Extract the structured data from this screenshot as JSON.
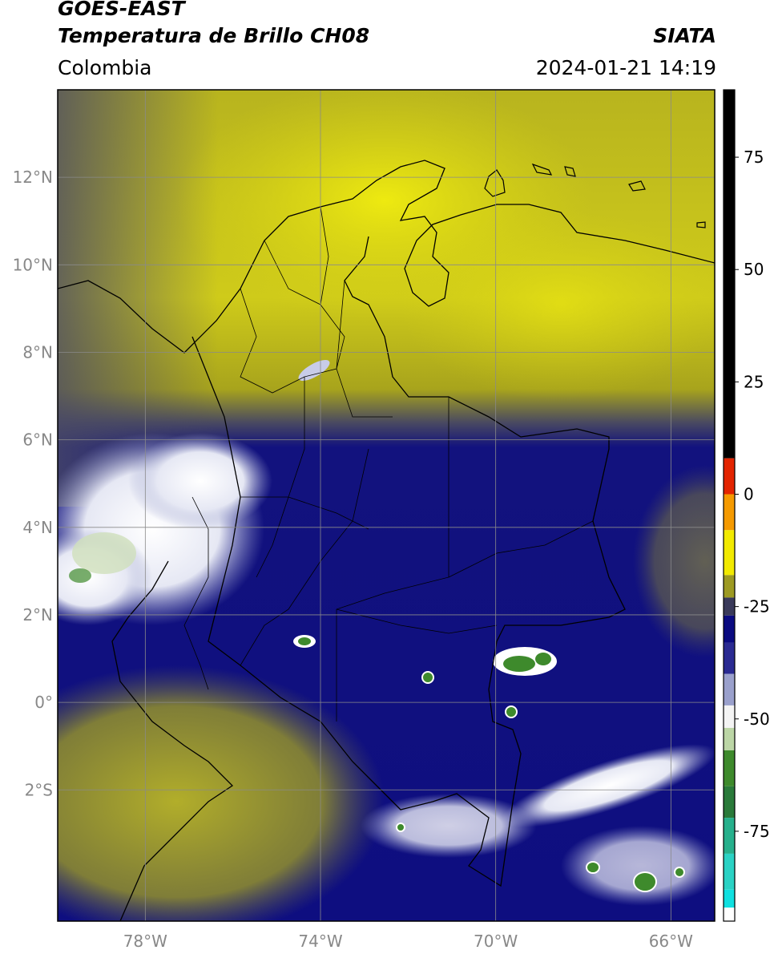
{
  "header": {
    "satellite": "GOES-EAST",
    "product": "Temperatura de Brillo CH08",
    "brand": "SIATA",
    "region": "Colombia",
    "timestamp": "2024-01-21 14:19"
  },
  "map": {
    "lat_ticks": [
      {
        "value": 12,
        "label": "12°N"
      },
      {
        "value": 10,
        "label": "10°N"
      },
      {
        "value": 8,
        "label": "8°N"
      },
      {
        "value": 6,
        "label": "6°N"
      },
      {
        "value": 4,
        "label": "4°N"
      },
      {
        "value": 2,
        "label": "2°N"
      },
      {
        "value": 0,
        "label": "0°"
      },
      {
        "value": -2,
        "label": "2°S"
      }
    ],
    "lon_ticks": [
      {
        "value": -78,
        "label": "78°W"
      },
      {
        "value": -74,
        "label": "74°W"
      },
      {
        "value": -70,
        "label": "70°W"
      },
      {
        "value": -66,
        "label": "66°W"
      }
    ],
    "extent": {
      "lon_min": -80,
      "lon_max": -65,
      "lat_min": -5,
      "lat_max": 14
    },
    "grid": true
  },
  "colorbar": {
    "vmin": -95,
    "vmax": 90,
    "ticks": [
      {
        "value": 75,
        "label": "75"
      },
      {
        "value": 50,
        "label": "50"
      },
      {
        "value": 25,
        "label": "25"
      },
      {
        "value": 0,
        "label": "0"
      },
      {
        "value": -25,
        "label": "-25"
      },
      {
        "value": -50,
        "label": "-50"
      },
      {
        "value": -75,
        "label": "-75"
      }
    ],
    "segments": [
      {
        "from": 8,
        "to": 90,
        "color": "#000000"
      },
      {
        "from": 0,
        "to": 8,
        "color": "#e32400"
      },
      {
        "from": -8,
        "to": 0,
        "color": "#f59a00"
      },
      {
        "from": -18,
        "to": -8,
        "color": "#f2ea00"
      },
      {
        "from": -23,
        "to": -18,
        "color": "#9d9a22"
      },
      {
        "from": -27,
        "to": -23,
        "color": "#3a3a5a"
      },
      {
        "from": -33,
        "to": -27,
        "color": "#0a0a80"
      },
      {
        "from": -40,
        "to": -33,
        "color": "#2a2a92"
      },
      {
        "from": -47,
        "to": -40,
        "color": "#9aa0cc"
      },
      {
        "from": -52,
        "to": -47,
        "color": "#f4f4f4"
      },
      {
        "from": -57,
        "to": -52,
        "color": "#bcd6a6"
      },
      {
        "from": -65,
        "to": -57,
        "color": "#3e8a2c"
      },
      {
        "from": -72,
        "to": -65,
        "color": "#2a7a3a"
      },
      {
        "from": -80,
        "to": -72,
        "color": "#26b08c"
      },
      {
        "from": -88,
        "to": -80,
        "color": "#2ad2c4"
      },
      {
        "from": -92,
        "to": -88,
        "color": "#10e0e0"
      },
      {
        "from": -95,
        "to": -92,
        "color": "#ffffff"
      }
    ]
  }
}
